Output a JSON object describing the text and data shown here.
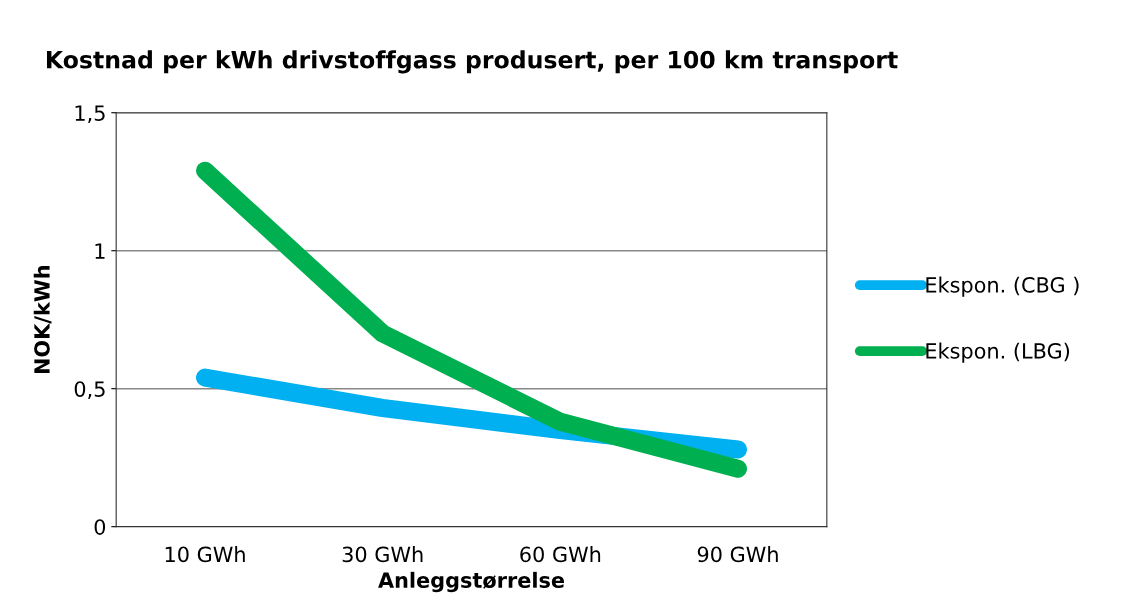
{
  "chart_data": {
    "type": "line",
    "title": "Kostnad per kWh drivstoffgass produsert, per 100 km transport",
    "xlabel": "Anleggstørrelse",
    "ylabel": "NOK/kWh",
    "categories": [
      "10 GWh",
      "30 GWh",
      "60 GWh",
      "90 GWh"
    ],
    "series": [
      {
        "name": "Ekspon. (CBG )",
        "color": "#00b0f0",
        "values": [
          0.54,
          0.43,
          0.35,
          0.28
        ]
      },
      {
        "name": "Ekspon. (LBG)",
        "color": "#00b050",
        "values": [
          1.29,
          0.7,
          0.38,
          0.21
        ]
      }
    ],
    "ylim": [
      0,
      1.5
    ],
    "yticks": [
      {
        "value": 0,
        "label": "0"
      },
      {
        "value": 0.5,
        "label": "0,5"
      },
      {
        "value": 1,
        "label": "1"
      },
      {
        "value": 1.5,
        "label": "1,5"
      }
    ],
    "grid": "y",
    "legend": "right",
    "marker": "none",
    "line_style": "solid"
  }
}
